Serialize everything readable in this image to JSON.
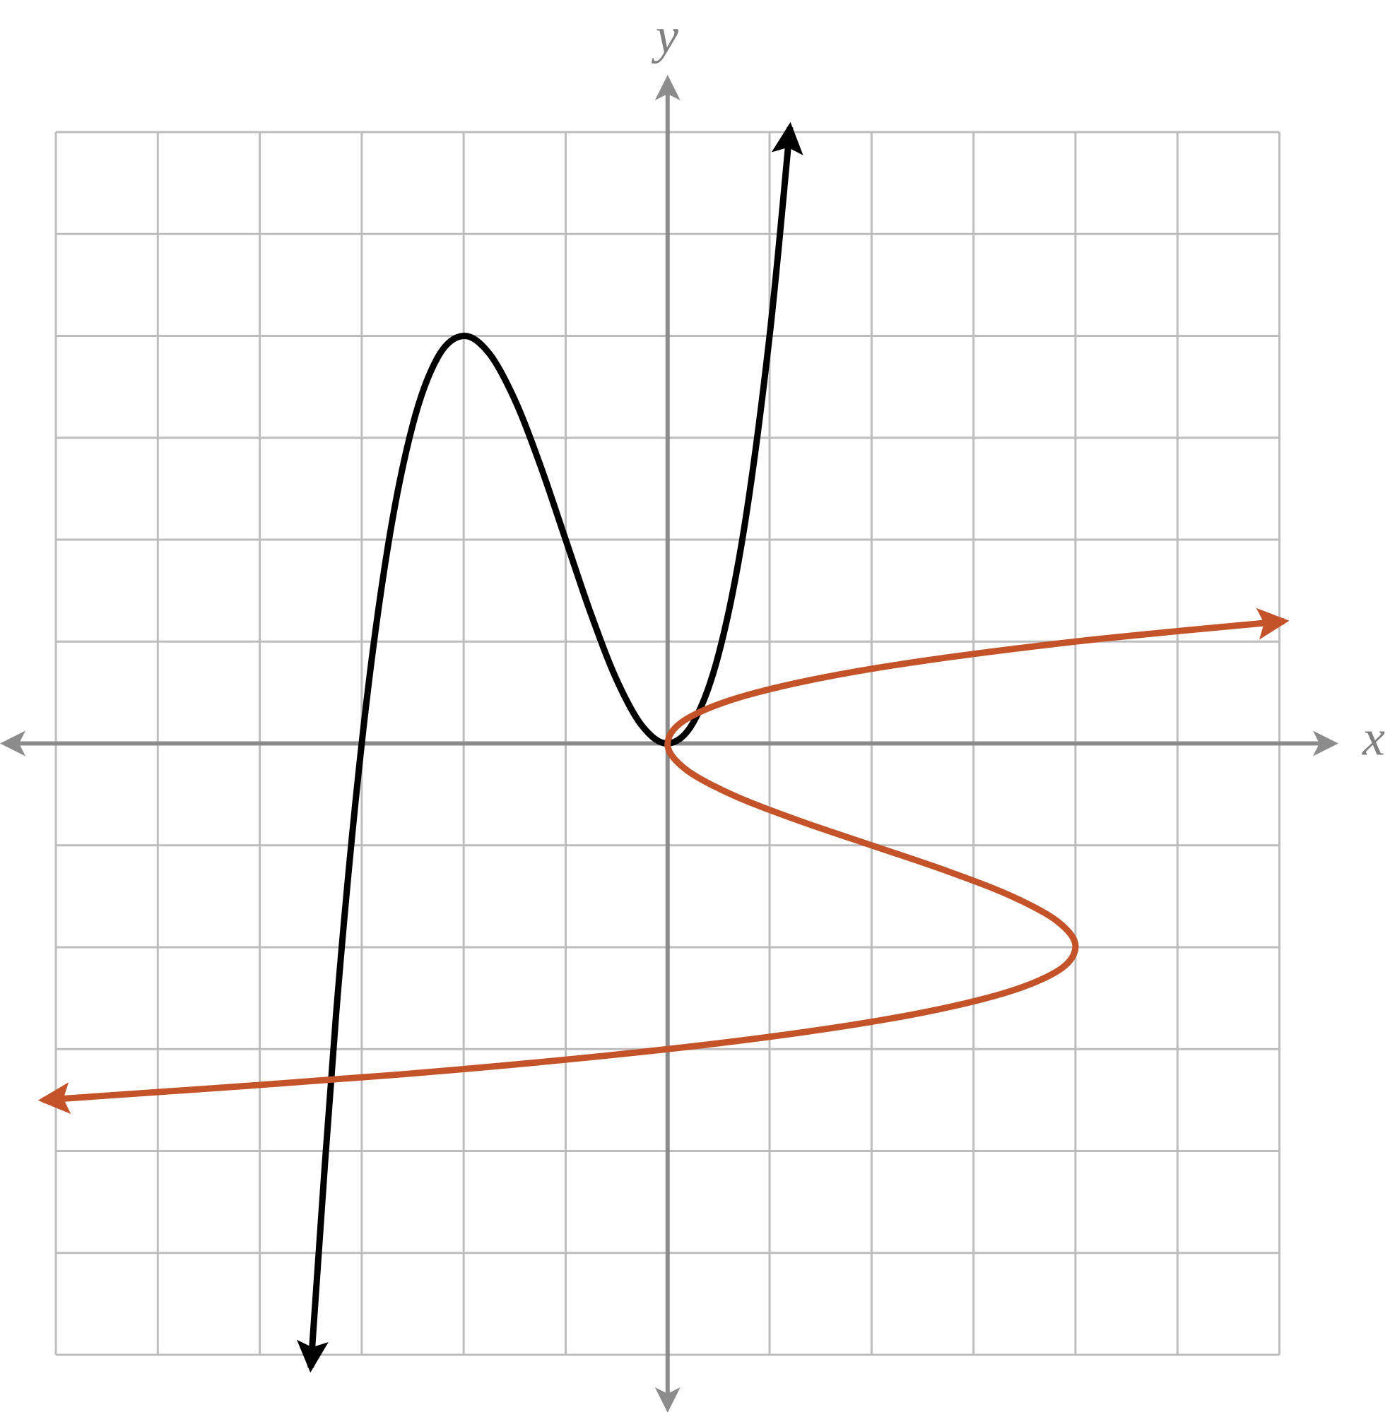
{
  "chart_data": {
    "type": "function",
    "x_label": "x",
    "y_label": "y",
    "xlim": [
      -6,
      6
    ],
    "ylim": [
      -6,
      6
    ],
    "xticks": [
      -6,
      -5,
      -4,
      -3,
      -2,
      -1,
      0,
      1,
      2,
      3,
      4,
      5,
      6
    ],
    "yticks": [
      -6,
      -5,
      -4,
      -3,
      -2,
      -1,
      0,
      1,
      2,
      3,
      4,
      5,
      6
    ],
    "grid": true,
    "series": [
      {
        "color": "#000000",
        "x": [
          -3.5,
          -3.25,
          -3,
          -2.75,
          -2.5,
          -2.25,
          -2,
          -1.75,
          -1.5,
          -1.25,
          -1,
          -0.75,
          -0.5,
          -0.25,
          0,
          0.25,
          0.5,
          0.75,
          1,
          1.2
        ],
        "values": [
          -6.125,
          -2.641,
          0,
          1.891,
          3.125,
          3.797,
          4,
          3.828,
          3.375,
          2.734,
          2,
          1.266,
          0.625,
          0.172,
          0,
          0.203,
          0.875,
          2.109,
          4,
          6.048
        ]
      },
      {
        "color": "#c4532a",
        "x": [
          -6.125,
          -2.641,
          0,
          1.891,
          3.125,
          3.797,
          4,
          3.828,
          3.375,
          2.734,
          2,
          1.266,
          0.625,
          0.172,
          0,
          0.203,
          0.875,
          2.109,
          4,
          6.048
        ],
        "values": [
          -3.5,
          -3.25,
          -3,
          -2.75,
          -2.5,
          -2.25,
          -2,
          -1.75,
          -1.5,
          -1.25,
          -1,
          -0.75,
          -0.5,
          -0.25,
          0,
          0.25,
          0.5,
          0.75,
          1,
          1.2
        ]
      }
    ]
  }
}
